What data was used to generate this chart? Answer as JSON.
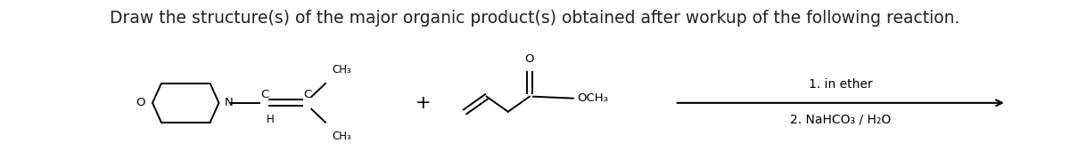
{
  "title_text": "Draw the structure(s) of the major organic product(s) obtained after workup of the following reaction.",
  "title_fontsize": 13.5,
  "title_color": "#222222",
  "bg_color": "#ffffff",
  "fig_width": 12.0,
  "fig_height": 1.88,
  "dpi": 100,
  "step1_text": "1. in ether",
  "step2_text": "2. NaHCO₃ / H₂O"
}
